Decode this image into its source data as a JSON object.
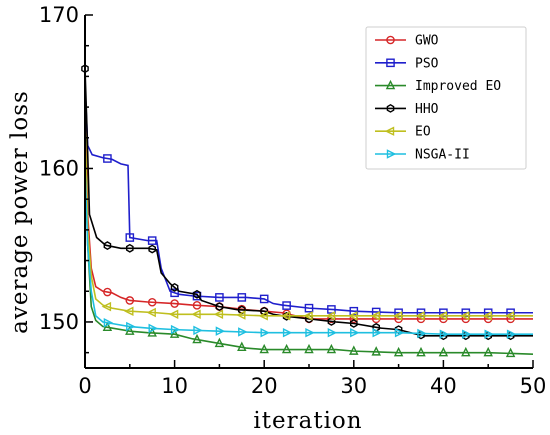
{
  "chart_data": {
    "type": "line",
    "title": "",
    "xlabel": "iteration",
    "ylabel": "average power loss",
    "xlim": [
      0,
      50
    ],
    "ylim": [
      147,
      170
    ],
    "xticks": [
      0,
      10,
      20,
      30,
      40,
      50
    ],
    "yticks": [
      150,
      160,
      170
    ],
    "legend_position": "top-right",
    "grid": false,
    "series": [
      {
        "name": "GWO",
        "color": "#d62728",
        "marker": "circle",
        "points": [
          [
            0,
            164.5
          ],
          [
            0.3,
            157
          ],
          [
            0.7,
            153.5
          ],
          [
            1.2,
            152.3
          ],
          [
            2,
            152.0
          ],
          [
            3,
            151.9
          ],
          [
            4,
            151.6
          ],
          [
            5,
            151.4
          ],
          [
            7,
            151.3
          ],
          [
            10,
            151.2
          ],
          [
            12,
            151.1
          ],
          [
            15,
            151.0
          ],
          [
            18,
            150.8
          ],
          [
            20,
            150.7
          ],
          [
            22,
            150.6
          ],
          [
            25,
            150.2
          ],
          [
            30,
            150.2
          ],
          [
            35,
            150.2
          ],
          [
            40,
            150.2
          ],
          [
            45,
            150.2
          ],
          [
            50,
            150.2
          ]
        ],
        "markers_x": [
          2.5,
          5,
          7.5,
          10,
          12.5,
          15,
          17.5,
          20,
          22.5,
          25,
          27.5,
          30,
          32.5,
          35,
          37.5,
          40,
          42.5,
          45,
          47.5
        ]
      },
      {
        "name": "PSO",
        "color": "#1f1fcc",
        "marker": "square",
        "points": [
          [
            0,
            165.5
          ],
          [
            0.3,
            161.5
          ],
          [
            0.8,
            160.9
          ],
          [
            2,
            160.7
          ],
          [
            3,
            160.6
          ],
          [
            4,
            160.3
          ],
          [
            4.8,
            160.2
          ],
          [
            5,
            155.5
          ],
          [
            7,
            155.3
          ],
          [
            8,
            155.3
          ],
          [
            8.5,
            153.5
          ],
          [
            9.5,
            152.0
          ],
          [
            10.5,
            151.8
          ],
          [
            12,
            151.7
          ],
          [
            15,
            151.6
          ],
          [
            18,
            151.6
          ],
          [
            20,
            151.5
          ],
          [
            21,
            151.2
          ],
          [
            22,
            151.1
          ],
          [
            25,
            150.9
          ],
          [
            28,
            150.8
          ],
          [
            30,
            150.7
          ],
          [
            35,
            150.6
          ],
          [
            40,
            150.6
          ],
          [
            45,
            150.6
          ],
          [
            50,
            150.6
          ]
        ],
        "markers_x": [
          2.5,
          5,
          7.5,
          10,
          12.5,
          15,
          17.5,
          20,
          22.5,
          25,
          27.5,
          30,
          32.5,
          35,
          37.5,
          40,
          42.5,
          45,
          47.5
        ]
      },
      {
        "name": "Improved EO",
        "color": "#2a8a2a",
        "marker": "triangle-up",
        "points": [
          [
            0,
            163.5
          ],
          [
            0.3,
            155
          ],
          [
            0.7,
            151
          ],
          [
            1.2,
            150.1
          ],
          [
            2,
            149.7
          ],
          [
            3,
            149.6
          ],
          [
            5,
            149.4
          ],
          [
            7,
            149.3
          ],
          [
            10,
            149.2
          ],
          [
            12,
            148.9
          ],
          [
            15,
            148.6
          ],
          [
            18,
            148.3
          ],
          [
            20,
            148.2
          ],
          [
            25,
            148.2
          ],
          [
            28,
            148.2
          ],
          [
            30,
            148.1
          ],
          [
            35,
            148.0
          ],
          [
            40,
            148.0
          ],
          [
            45,
            148.0
          ],
          [
            50,
            147.9
          ]
        ],
        "markers_x": [
          2.5,
          5,
          7.5,
          10,
          12.5,
          15,
          17.5,
          20,
          22.5,
          25,
          27.5,
          30,
          32.5,
          35,
          37.5,
          40,
          42.5,
          45,
          47.5
        ]
      },
      {
        "name": "HHO",
        "color": "#000000",
        "marker": "hexagon",
        "points": [
          [
            0,
            166.5
          ],
          [
            0.2,
            163
          ],
          [
            0.5,
            157
          ],
          [
            1.3,
            155.5
          ],
          [
            2.3,
            155.0
          ],
          [
            4,
            154.8
          ],
          [
            7,
            154.8
          ],
          [
            8,
            154.7
          ],
          [
            8.5,
            153.2
          ],
          [
            9.5,
            152.5
          ],
          [
            10.5,
            152.0
          ],
          [
            12.5,
            151.8
          ],
          [
            13,
            151.4
          ],
          [
            15,
            151.0
          ],
          [
            17,
            150.8
          ],
          [
            20,
            150.7
          ],
          [
            21,
            150.5
          ],
          [
            22,
            150.4
          ],
          [
            25,
            150.2
          ],
          [
            28,
            150.0
          ],
          [
            30,
            149.9
          ],
          [
            33,
            149.6
          ],
          [
            35,
            149.5
          ],
          [
            37,
            149.2
          ],
          [
            38,
            149.1
          ],
          [
            40,
            149.1
          ],
          [
            45,
            149.1
          ],
          [
            50,
            149.1
          ]
        ],
        "markers_x": [
          0,
          2.5,
          5,
          7.5,
          10,
          12.5,
          15,
          17.5,
          20,
          22.5,
          25,
          27.5,
          30,
          32.5,
          35,
          37.5,
          40,
          42.5,
          45,
          47.5
        ]
      },
      {
        "name": "EO",
        "color": "#bfbf1f",
        "marker": "triangle-left",
        "points": [
          [
            0,
            163
          ],
          [
            0.3,
            156
          ],
          [
            0.7,
            153
          ],
          [
            1.2,
            151.5
          ],
          [
            2,
            151.1
          ],
          [
            3,
            150.9
          ],
          [
            5,
            150.7
          ],
          [
            8,
            150.6
          ],
          [
            10,
            150.5
          ],
          [
            15,
            150.5
          ],
          [
            20,
            150.4
          ],
          [
            25,
            150.4
          ],
          [
            30,
            150.4
          ],
          [
            35,
            150.4
          ],
          [
            40,
            150.4
          ],
          [
            45,
            150.4
          ],
          [
            50,
            150.4
          ]
        ],
        "markers_x": [
          2.5,
          5,
          7.5,
          10,
          12.5,
          15,
          17.5,
          20,
          22.5,
          25,
          27.5,
          30,
          32.5,
          35,
          37.5,
          40,
          42.5,
          45,
          47.5
        ]
      },
      {
        "name": "NSGA-II",
        "color": "#1fbfe0",
        "marker": "triangle-right",
        "points": [
          [
            0,
            160
          ],
          [
            0.3,
            155
          ],
          [
            0.7,
            152
          ],
          [
            1.2,
            150.4
          ],
          [
            2,
            150.0
          ],
          [
            3,
            149.9
          ],
          [
            5,
            149.7
          ],
          [
            7,
            149.6
          ],
          [
            10,
            149.5
          ],
          [
            15,
            149.4
          ],
          [
            20,
            149.3
          ],
          [
            25,
            149.3
          ],
          [
            30,
            149.3
          ],
          [
            35,
            149.3
          ],
          [
            40,
            149.2
          ],
          [
            45,
            149.2
          ],
          [
            50,
            149.2
          ]
        ],
        "markers_x": [
          2.5,
          5,
          7.5,
          10,
          12.5,
          15,
          17.5,
          20,
          22.5,
          25,
          27.5,
          30,
          32.5,
          35,
          37.5,
          40,
          42.5,
          45,
          47.5
        ]
      }
    ]
  }
}
